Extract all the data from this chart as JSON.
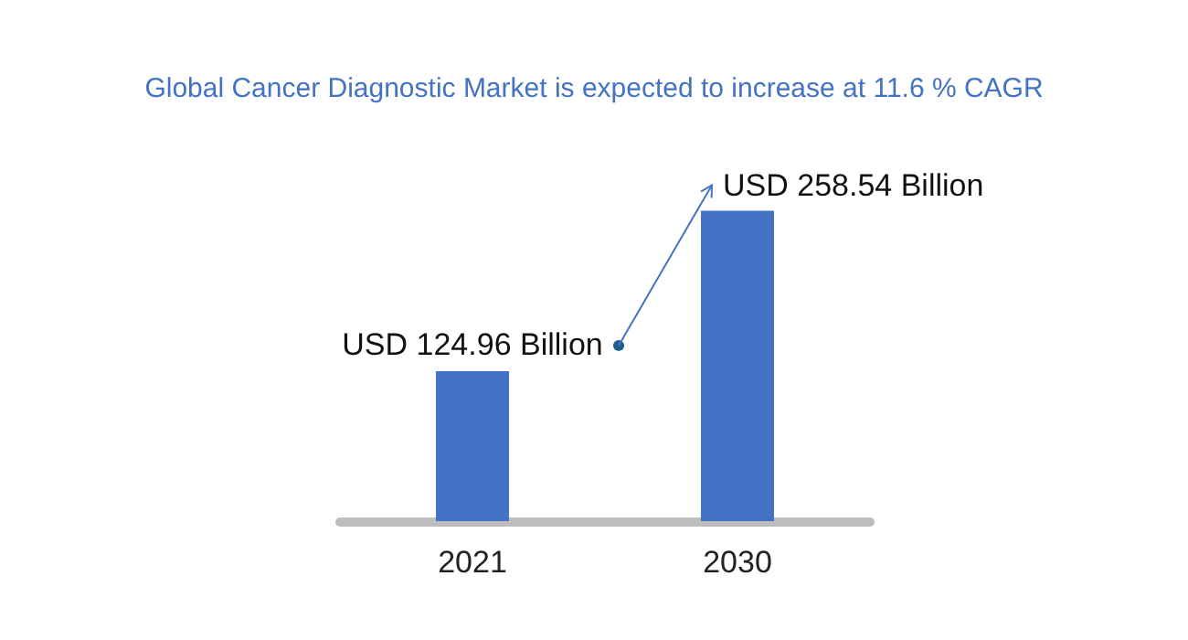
{
  "chart_data": {
    "type": "bar",
    "title": "Global Cancer Diagnostic Market is expected to increase at 11.6 % CAGR",
    "categories": [
      "2021",
      "2030"
    ],
    "values": [
      124.96,
      258.54
    ],
    "value_labels": [
      "USD 124.96 Billion",
      "USD 258.54 Billion"
    ],
    "color": "#4472c4"
  }
}
